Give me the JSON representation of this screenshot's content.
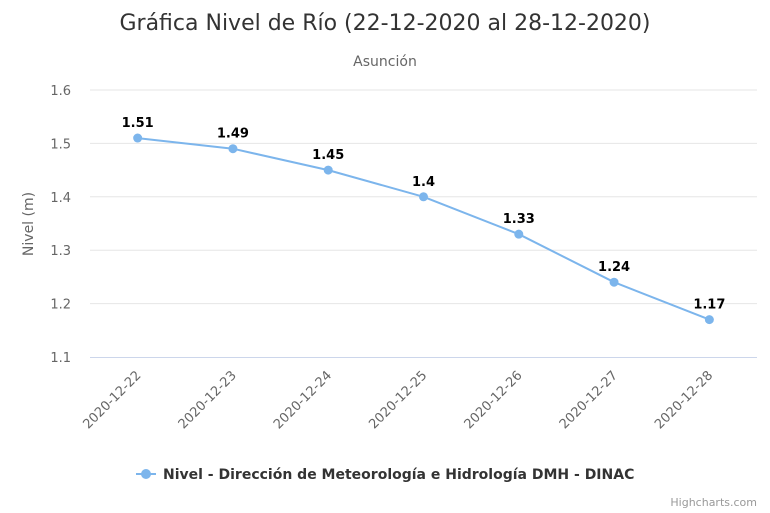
{
  "chart_data": {
    "type": "line",
    "title": "Gráfica Nivel de Río (22-12-2020 al 28-12-2020)",
    "subtitle": "Asunción",
    "xlabel": "",
    "ylabel": "Nivel (m)",
    "categories": [
      "2020-12-22",
      "2020-12-23",
      "2020-12-24",
      "2020-12-25",
      "2020-12-26",
      "2020-12-27",
      "2020-12-28"
    ],
    "series": [
      {
        "name": "Nivel - Dirección de Meteorología e Hidrología DMH - DINAC",
        "values": [
          1.51,
          1.49,
          1.45,
          1.4,
          1.33,
          1.24,
          1.17
        ],
        "data_labels": [
          "1.51",
          "1.49",
          "1.45",
          "1.4",
          "1.33",
          "1.24",
          "1.17"
        ],
        "color": "#7cb5ec"
      }
    ],
    "ylim": [
      1.1,
      1.6
    ],
    "yticks": [
      "1.1",
      "1.2",
      "1.3",
      "1.4",
      "1.5",
      "1.6"
    ],
    "grid": true,
    "legend_position": "bottom-center"
  },
  "credits": "Highcharts.com",
  "colors": {
    "gridline": "#e6e6e6",
    "axisline": "#ccd6eb",
    "series": "#7cb5ec"
  }
}
